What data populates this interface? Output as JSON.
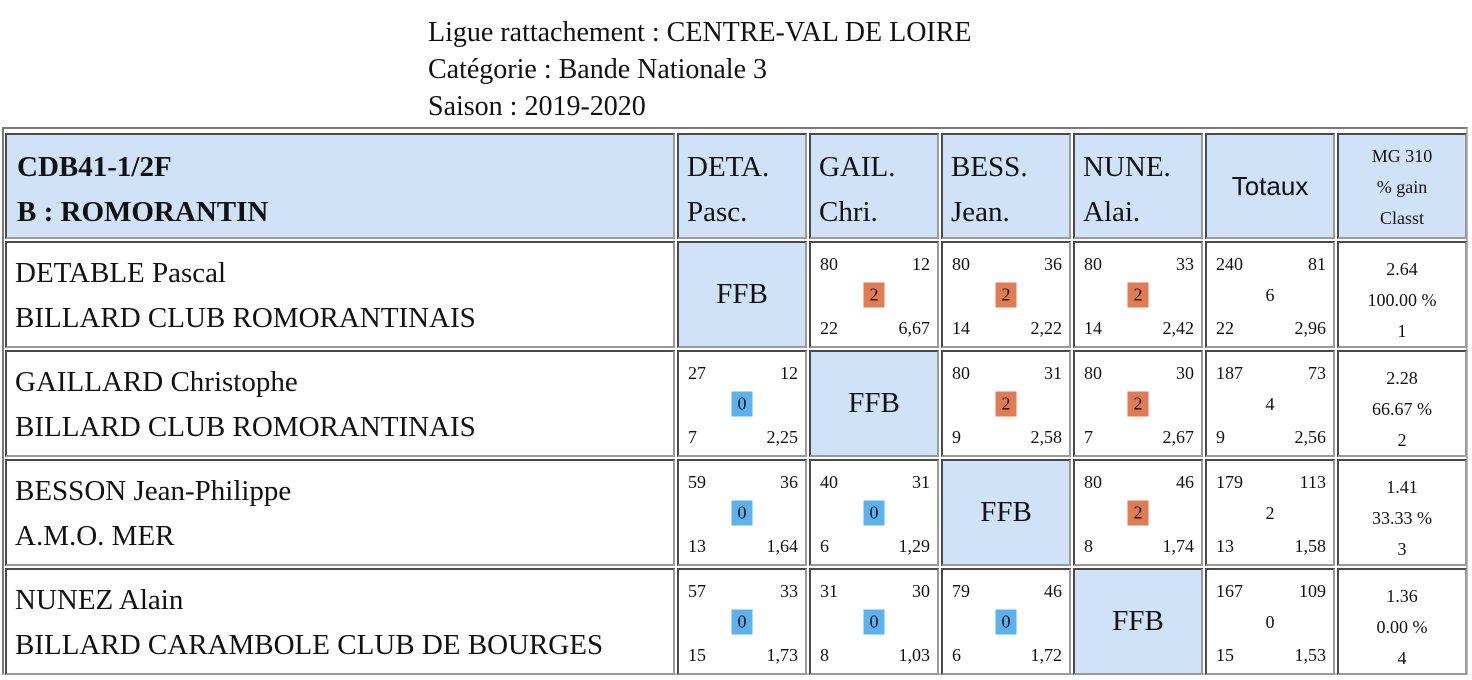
{
  "header": {
    "ligue": "Ligue rattachement : CENTRE-VAL DE LOIRE",
    "categorie": "Catégorie : Bande Nationale 3",
    "saison": "Saison : 2019-2020"
  },
  "table": {
    "title_line1": "CDB41-1/2F",
    "title_line2": "B : ROMORANTIN",
    "columns": [
      {
        "line1": "DETA.",
        "line2": "Pasc."
      },
      {
        "line1": "GAIL.",
        "line2": "Chri."
      },
      {
        "line1": "BESS.",
        "line2": "Jean."
      },
      {
        "line1": "NUNE.",
        "line2": "Alai."
      }
    ],
    "totals_label": "Totaux",
    "stats_header": {
      "line1": "MG 310",
      "line2": "% gain",
      "line3": "Classt"
    },
    "self_label": "FFB",
    "colors": {
      "win": "#e07b54",
      "loss": "#5ab3ef",
      "header_bg": "#cfe2f8"
    },
    "rows": [
      {
        "name": "DETABLE Pascal",
        "club": "BILLARD CLUB ROMORANTINAIS",
        "matches": [
          null,
          {
            "points": "80",
            "serie": "12",
            "result": "2",
            "innings": "22",
            "avg": "6,67"
          },
          {
            "points": "80",
            "serie": "36",
            "result": "2",
            "innings": "14",
            "avg": "2,22"
          },
          {
            "points": "80",
            "serie": "33",
            "result": "2",
            "innings": "14",
            "avg": "2,42"
          }
        ],
        "totals": {
          "points": "240",
          "serie": "81",
          "result": "6",
          "innings": "22",
          "avg": "2,96"
        },
        "stats": {
          "mg": "2.64",
          "pct": "100.00 %",
          "rank": "1"
        }
      },
      {
        "name": "GAILLARD Christophe",
        "club": "BILLARD CLUB ROMORANTINAIS",
        "matches": [
          {
            "points": "27",
            "serie": "12",
            "result": "0",
            "innings": "7",
            "avg": "2,25"
          },
          null,
          {
            "points": "80",
            "serie": "31",
            "result": "2",
            "innings": "9",
            "avg": "2,58"
          },
          {
            "points": "80",
            "serie": "30",
            "result": "2",
            "innings": "7",
            "avg": "2,67"
          }
        ],
        "totals": {
          "points": "187",
          "serie": "73",
          "result": "4",
          "innings": "9",
          "avg": "2,56"
        },
        "stats": {
          "mg": "2.28",
          "pct": "66.67 %",
          "rank": "2"
        }
      },
      {
        "name": "BESSON Jean-Philippe",
        "club": "A.M.O. MER",
        "matches": [
          {
            "points": "59",
            "serie": "36",
            "result": "0",
            "innings": "13",
            "avg": "1,64"
          },
          {
            "points": "40",
            "serie": "31",
            "result": "0",
            "innings": "6",
            "avg": "1,29"
          },
          null,
          {
            "points": "80",
            "serie": "46",
            "result": "2",
            "innings": "8",
            "avg": "1,74"
          }
        ],
        "totals": {
          "points": "179",
          "serie": "113",
          "result": "2",
          "innings": "13",
          "avg": "1,58"
        },
        "stats": {
          "mg": "1.41",
          "pct": "33.33 %",
          "rank": "3"
        }
      },
      {
        "name": "NUNEZ Alain",
        "club": "BILLARD CARAMBOLE CLUB DE BOURGES",
        "matches": [
          {
            "points": "57",
            "serie": "33",
            "result": "0",
            "innings": "15",
            "avg": "1,73"
          },
          {
            "points": "31",
            "serie": "30",
            "result": "0",
            "innings": "8",
            "avg": "1,03"
          },
          {
            "points": "79",
            "serie": "46",
            "result": "0",
            "innings": "6",
            "avg": "1,72"
          },
          null
        ],
        "totals": {
          "points": "167",
          "serie": "109",
          "result": "0",
          "innings": "15",
          "avg": "1,53"
        },
        "stats": {
          "mg": "1.36",
          "pct": "0.00 %",
          "rank": "4"
        }
      }
    ]
  }
}
